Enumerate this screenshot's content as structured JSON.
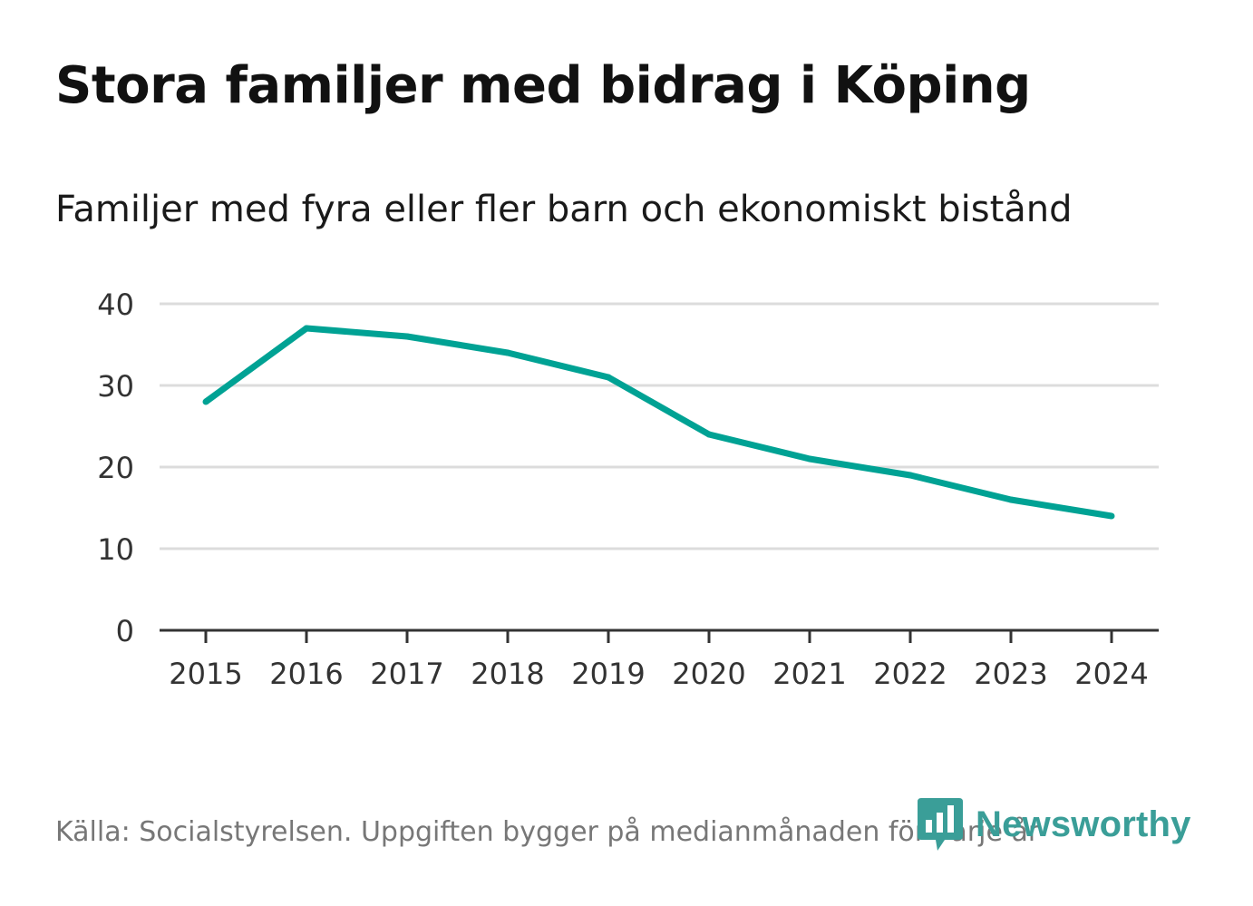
{
  "chart_data": {
    "type": "line",
    "title": "Stora familjer med bidrag i Köping",
    "subtitle": "Familjer med fyra eller fler barn och ekonomiskt bistånd",
    "categories": [
      "2015",
      "2016",
      "2017",
      "2018",
      "2019",
      "2020",
      "2021",
      "2022",
      "2023",
      "2024"
    ],
    "series": [
      {
        "name": "Familjer med fyra eller fler barn och ekonomiskt bistånd",
        "values": [
          28,
          37,
          36,
          34,
          31,
          24,
          21,
          19,
          16,
          14
        ]
      }
    ],
    "yticks": [
      "0",
      "10",
      "20",
      "30",
      "40"
    ],
    "ylim": [
      0,
      40
    ],
    "xlabel": "",
    "ylabel": "",
    "grid": true,
    "line_color": "#00a294",
    "source": "Källa: Socialstyrelsen. Uppgiften bygger på medianmånaden för varje år"
  },
  "brand": {
    "name": "Newsworthy",
    "color": "#3a9e98"
  }
}
